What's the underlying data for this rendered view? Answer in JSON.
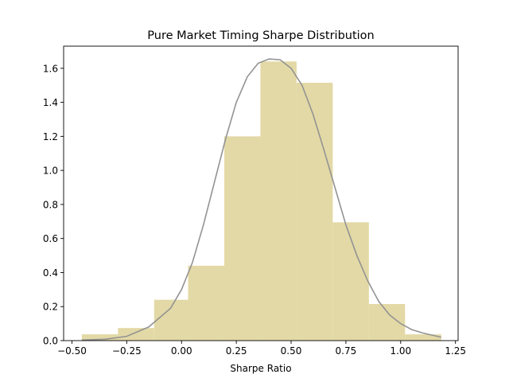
{
  "chart_data": {
    "type": "bar",
    "title": "Pure Market Timing Sharpe Distribution",
    "xlabel": "Sharpe Ratio",
    "ylabel": "",
    "xlim": [
      -0.538,
      1.262
    ],
    "ylim": [
      0,
      1.73
    ],
    "xticks": [
      -0.5,
      -0.25,
      0.0,
      0.25,
      0.5,
      0.75,
      1.0,
      1.25
    ],
    "xtick_labels": [
      "−0.50",
      "−0.25",
      "0.00",
      "0.25",
      "0.50",
      "0.75",
      "1.00",
      "1.25"
    ],
    "yticks": [
      0.0,
      0.2,
      0.4,
      0.6,
      0.8,
      1.0,
      1.2,
      1.4,
      1.6
    ],
    "ytick_labels": [
      "0.0",
      "0.2",
      "0.4",
      "0.6",
      "0.8",
      "1.0",
      "1.2",
      "1.4",
      "1.6"
    ],
    "grid": false,
    "histogram": {
      "bin_edges": [
        -0.455,
        -0.29,
        -0.125,
        0.03,
        0.195,
        0.36,
        0.525,
        0.69,
        0.855,
        1.02,
        1.185
      ],
      "densities": [
        0.037,
        0.074,
        0.24,
        0.44,
        1.2,
        1.64,
        1.515,
        0.695,
        0.215,
        0.037
      ],
      "color": "#e3d9a6"
    },
    "kde_curve": {
      "color": "#939393",
      "x": [
        -0.455,
        -0.35,
        -0.25,
        -0.15,
        -0.05,
        0.0,
        0.05,
        0.1,
        0.15,
        0.2,
        0.25,
        0.3,
        0.35,
        0.4,
        0.45,
        0.5,
        0.55,
        0.6,
        0.65,
        0.7,
        0.75,
        0.8,
        0.85,
        0.9,
        0.95,
        1.0,
        1.05,
        1.1,
        1.185
      ],
      "y": [
        0.003,
        0.008,
        0.025,
        0.08,
        0.19,
        0.3,
        0.46,
        0.68,
        0.93,
        1.18,
        1.4,
        1.55,
        1.63,
        1.655,
        1.65,
        1.6,
        1.5,
        1.33,
        1.12,
        0.9,
        0.68,
        0.5,
        0.35,
        0.23,
        0.15,
        0.1,
        0.065,
        0.045,
        0.02
      ]
    }
  }
}
